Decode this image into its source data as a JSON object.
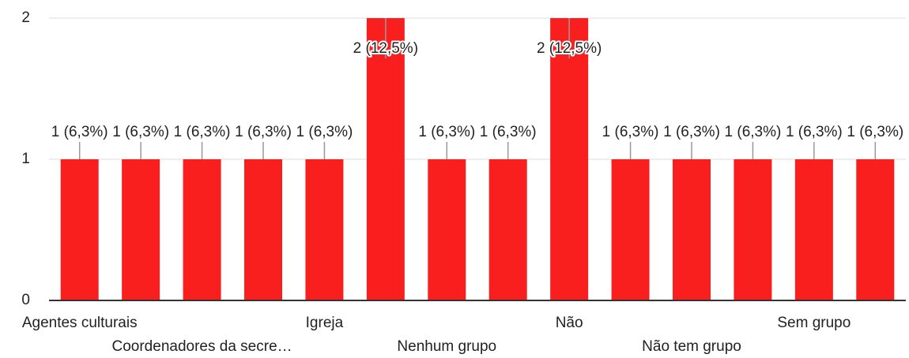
{
  "chart_data": {
    "type": "bar",
    "categories": [
      "Agentes culturais",
      null,
      "Coordenadores da secre…",
      null,
      "Igreja",
      null,
      "Nenhum grupo",
      null,
      "Não",
      null,
      "Não tem grupo",
      null,
      "Sem grupo",
      null
    ],
    "values": [
      1,
      1,
      1,
      1,
      1,
      2,
      1,
      1,
      2,
      1,
      1,
      1,
      1,
      1
    ],
    "value_labels": [
      "1 (6,3%)",
      "1 (6,3%)",
      "1 (6,3%)",
      "1 (6,3%)",
      "1 (6,3%)",
      "2 (12,5%)",
      "1 (6,3%)",
      "1 (6,3%)",
      "2 (12,5%)",
      "1 (6,3%)",
      "1 (6,3%)",
      "1 (6,3%)",
      "1 (6,3%)",
      "1 (6,3%)"
    ],
    "color": "#f91f1f",
    "ylim": [
      0,
      2
    ],
    "yticks": [
      0,
      1,
      2
    ],
    "grid": true
  }
}
